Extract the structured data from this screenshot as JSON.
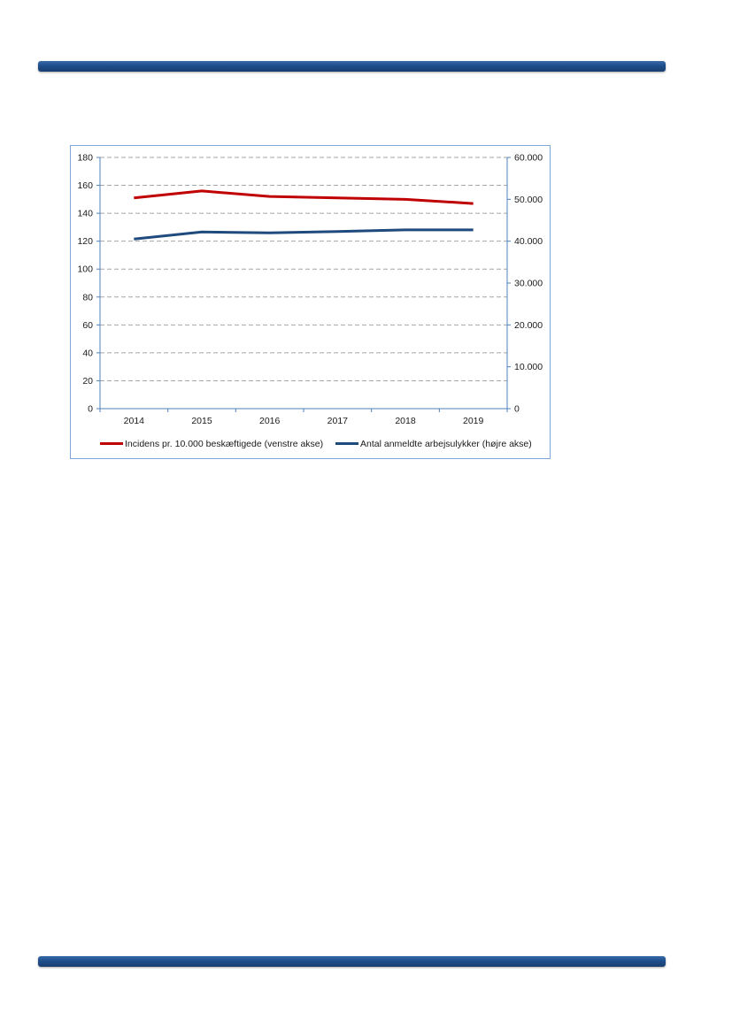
{
  "colors": {
    "header_bar": "#1f4e8c",
    "series_left": "#c00000",
    "series_right": "#1f4a7d",
    "axis": "#4f81bd",
    "grid": "#a6a6a6"
  },
  "chart_data": {
    "type": "line",
    "categories": [
      "2014",
      "2015",
      "2016",
      "2017",
      "2018",
      "2019"
    ],
    "y_left": {
      "ylim": [
        0,
        180
      ],
      "ticks": [
        0,
        20,
        40,
        60,
        80,
        100,
        120,
        140,
        160,
        180
      ],
      "tick_labels": [
        "0",
        "20",
        "40",
        "60",
        "80",
        "100",
        "120",
        "140",
        "160",
        "180"
      ]
    },
    "y_right": {
      "ylim": [
        0,
        60000
      ],
      "ticks": [
        0,
        10000,
        20000,
        30000,
        40000,
        50000,
        60000
      ],
      "tick_labels": [
        "0",
        "10.000",
        "20.000",
        "30.000",
        "40.000",
        "50.000",
        "60.000"
      ]
    },
    "series": [
      {
        "name": "Incidens pr. 10.000 beskæftigede (venstre akse)",
        "axis": "left",
        "color": "#c00000",
        "values": [
          151,
          156,
          152,
          151,
          150,
          147
        ]
      },
      {
        "name": "Antal anmeldte arbejsulykker (højre akse)",
        "axis": "right",
        "color": "#1f4a7d",
        "values": [
          40500,
          42200,
          42000,
          42300,
          42700,
          42700
        ]
      }
    ],
    "grid": true,
    "legend_position": "bottom"
  }
}
